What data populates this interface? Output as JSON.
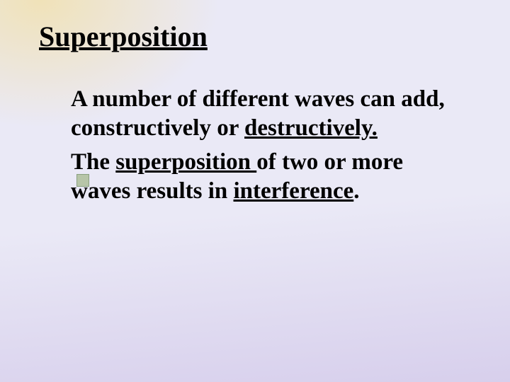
{
  "background": {
    "gradient_top_left": "#f0e2b8",
    "gradient_right": "#eae9f6",
    "gradient_bottom": "#d7cfec"
  },
  "title": {
    "text": "Superposition",
    "font_size": 40,
    "color": "#000000",
    "underline": true
  },
  "paragraphs": {
    "p1_a": "A number of different waves can add, constructively or ",
    "p1_b": "destructively.",
    "p2_a": "The ",
    "p2_b": "superposition ",
    "p2_c": "of two or more waves results in ",
    "p2_d": "interference",
    "p2_e": "."
  },
  "body_style": {
    "font_size": 33,
    "color": "#000000",
    "font_weight": "bold"
  },
  "bullet": {
    "fill": "#b7c5a8",
    "border": "#8aa080",
    "size": 16
  }
}
